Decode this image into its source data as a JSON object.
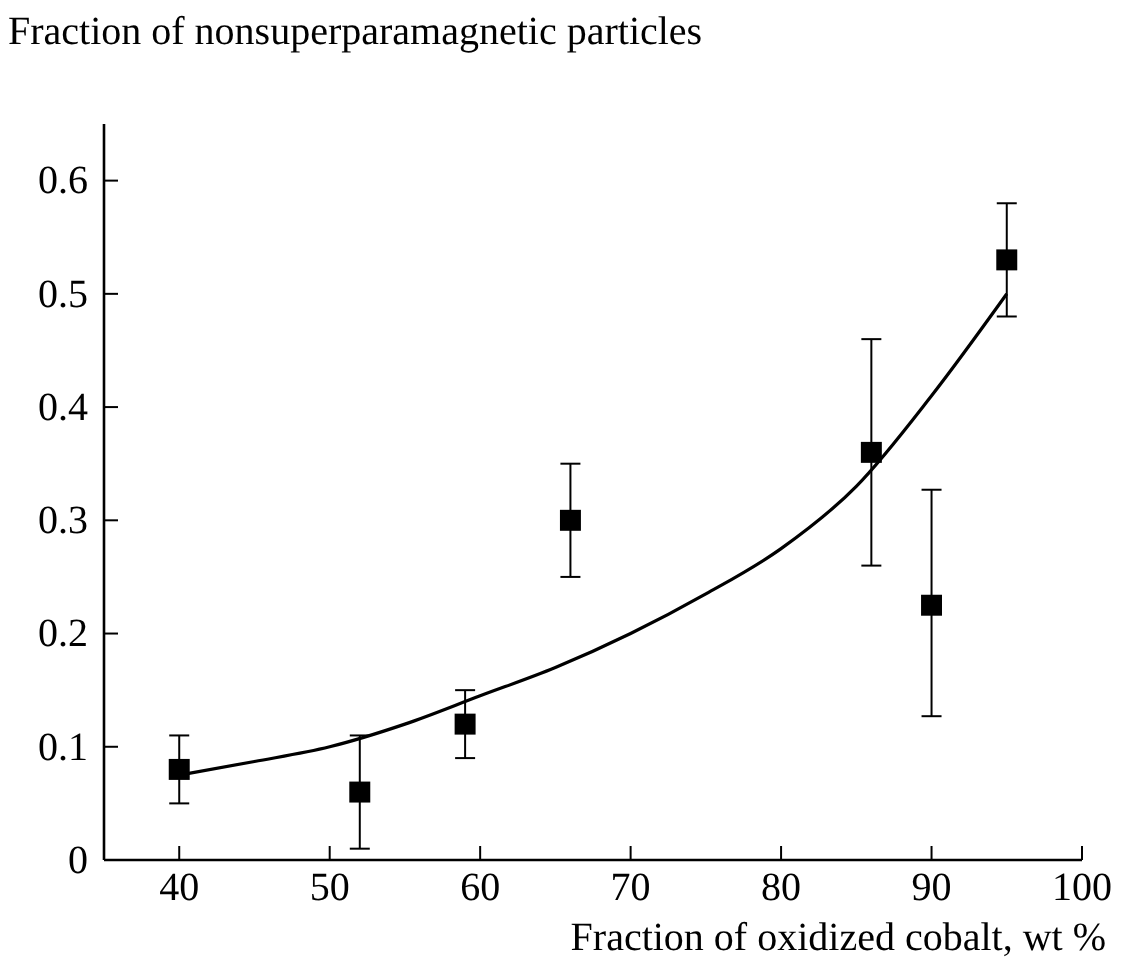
{
  "chart_data": {
    "type": "scatter",
    "xlabel": "Fraction of oxidized cobalt, wt %",
    "ylabel": "Fraction of nonsuperparamagnetic particles",
    "xlim": [
      35,
      100
    ],
    "xticks": [
      40,
      50,
      60,
      70,
      80,
      90,
      100
    ],
    "ylim": [
      0,
      0.65
    ],
    "yticks": [
      0,
      0.1,
      0.2,
      0.3,
      0.4,
      0.5,
      0.6
    ],
    "grid": false,
    "series": [
      {
        "marker": "square",
        "color": "#000000",
        "x": [
          40,
          52,
          59,
          66,
          86,
          90,
          95
        ],
        "values": [
          0.08,
          0.06,
          0.12,
          0.3,
          0.36,
          0.225,
          0.53
        ],
        "errors": [
          [
            0.05,
            0.11
          ],
          [
            0.01,
            0.11
          ],
          [
            0.09,
            0.15
          ],
          [
            0.25,
            0.35
          ],
          [
            0.26,
            0.46
          ],
          [
            0.127,
            0.327
          ],
          [
            0.48,
            0.58
          ]
        ]
      },
      {
        "type": "line",
        "marker": "none",
        "color": "#000000",
        "x": [
          40,
          45,
          50,
          55,
          60,
          65,
          70,
          75,
          80,
          85,
          90,
          95
        ],
        "values": [
          0.075,
          0.087,
          0.1,
          0.12,
          0.145,
          0.17,
          0.2,
          0.235,
          0.275,
          0.33,
          0.41,
          0.5
        ]
      }
    ]
  }
}
